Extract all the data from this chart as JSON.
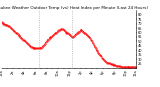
{
  "title": "Milwaukee Weather Outdoor Temp (vs) Heat Index per Minute (Last 24 Hours)",
  "background_color": "#ffffff",
  "line_color": "#ff0000",
  "line_style": "--",
  "line_width": 0.5,
  "marker": ".",
  "marker_size": 0.8,
  "vline_color": "#999999",
  "vline_style": ":",
  "vline_positions": [
    40,
    75
  ],
  "ylim": [
    20,
    85
  ],
  "yticks": [
    25,
    30,
    35,
    40,
    45,
    50,
    55,
    60,
    65,
    70,
    75,
    80
  ],
  "ylabel_side": "right",
  "x_values": [
    0,
    1,
    2,
    3,
    4,
    5,
    6,
    7,
    8,
    9,
    10,
    11,
    12,
    13,
    14,
    15,
    16,
    17,
    18,
    19,
    20,
    21,
    22,
    23,
    24,
    25,
    26,
    27,
    28,
    29,
    30,
    31,
    32,
    33,
    34,
    35,
    36,
    37,
    38,
    39,
    40,
    41,
    42,
    43,
    44,
    45,
    46,
    47,
    48,
    49,
    50,
    51,
    52,
    53,
    54,
    55,
    56,
    57,
    58,
    59,
    60,
    61,
    62,
    63,
    64,
    65,
    66,
    67,
    68,
    69,
    70,
    71,
    72,
    73,
    74,
    75,
    76,
    77,
    78,
    79,
    80,
    81,
    82,
    83,
    84,
    85,
    86,
    87,
    88,
    89,
    90,
    91,
    92,
    93,
    94,
    95,
    96,
    97,
    98,
    99,
    100,
    101,
    102,
    103,
    104,
    105,
    106,
    107,
    108,
    109,
    110,
    111,
    112,
    113,
    114,
    115,
    116,
    117,
    118,
    119,
    120,
    121,
    122,
    123,
    124,
    125,
    126,
    127,
    128,
    129,
    130,
    131,
    132,
    133,
    134,
    135,
    136,
    137,
    138,
    139,
    140,
    141,
    142,
    143
  ],
  "y_values": [
    72,
    71,
    70,
    70,
    69,
    69,
    68,
    67,
    67,
    66,
    65,
    64,
    63,
    62,
    61,
    60,
    59,
    58,
    57,
    56,
    55,
    54,
    53,
    52,
    51,
    50,
    49,
    48,
    47,
    46,
    45,
    44,
    44,
    43,
    43,
    43,
    42,
    42,
    42,
    42,
    42,
    43,
    43,
    44,
    45,
    46,
    47,
    49,
    50,
    52,
    53,
    54,
    55,
    55,
    56,
    57,
    58,
    59,
    60,
    61,
    62,
    63,
    63,
    64,
    64,
    64,
    63,
    62,
    61,
    60,
    59,
    59,
    58,
    57,
    56,
    55,
    55,
    56,
    57,
    58,
    59,
    60,
    61,
    62,
    63,
    63,
    62,
    61,
    60,
    59,
    58,
    57,
    56,
    55,
    54,
    52,
    50,
    48,
    46,
    44,
    42,
    40,
    39,
    37,
    36,
    34,
    33,
    31,
    30,
    29,
    28,
    27,
    26,
    26,
    25,
    25,
    24,
    24,
    24,
    23,
    23,
    23,
    22,
    22,
    22,
    22,
    22,
    21,
    21,
    21,
    21,
    21,
    21,
    21,
    21,
    21,
    21,
    21,
    21,
    21,
    21,
    21,
    21,
    21
  ],
  "xtick_positions": [
    0,
    6,
    12,
    18,
    24,
    30,
    36,
    42,
    48,
    54,
    60,
    66,
    72,
    78,
    84,
    90,
    96,
    102,
    108,
    114,
    120,
    126,
    132,
    138,
    143
  ],
  "xtick_labels": [
    "12a",
    "",
    "2a",
    "",
    "4a",
    "",
    "6a",
    "",
    "8a",
    "",
    "10a",
    "",
    "12p",
    "",
    "2p",
    "",
    "4p",
    "",
    "6p",
    "",
    "8p",
    "",
    "10p",
    "",
    "12a"
  ],
  "title_fontsize": 3.0,
  "tick_fontsize": 2.5,
  "grid_alpha": 0.5
}
